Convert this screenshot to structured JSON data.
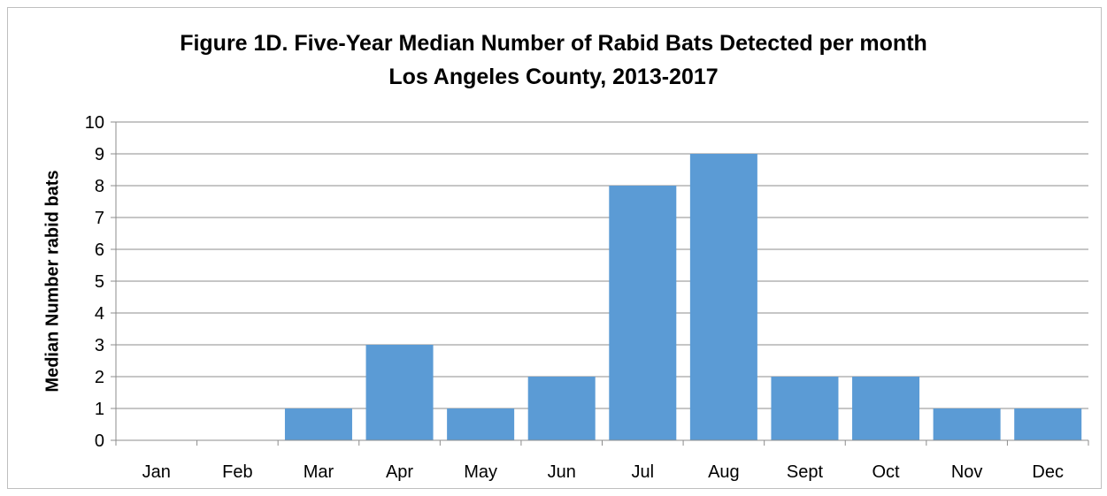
{
  "chart_data": {
    "type": "bar",
    "title": "Figure 1D. Five-Year Median Number of Rabid Bats Detected per month",
    "subtitle": "Los Angeles County, 2013-2017",
    "xlabel": "",
    "ylabel": "Median Number rabid bats",
    "categories": [
      "Jan",
      "Feb",
      "Mar",
      "Apr",
      "May",
      "Jun",
      "Jul",
      "Aug",
      "Sept",
      "Oct",
      "Nov",
      "Dec"
    ],
    "values": [
      0,
      0,
      1,
      3,
      1,
      2,
      8,
      9,
      2,
      2,
      1,
      1
    ],
    "ylim": [
      0,
      10
    ],
    "yticks": [
      0,
      1,
      2,
      3,
      4,
      5,
      6,
      7,
      8,
      9,
      10
    ],
    "grid": true,
    "legend": "none",
    "bar_color": "#5b9bd5"
  }
}
